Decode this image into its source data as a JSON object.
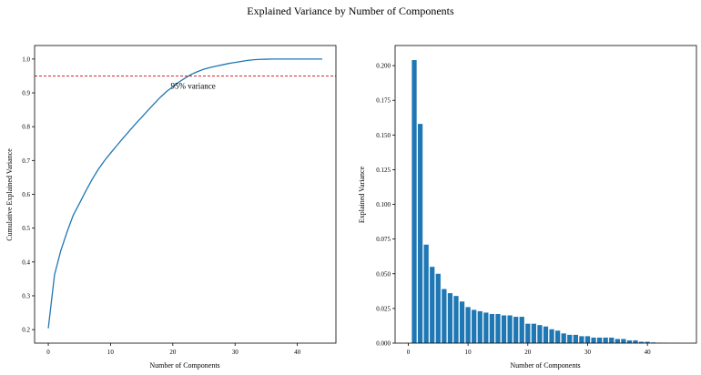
{
  "figure": {
    "title": "Explained Variance by Number of Components"
  },
  "chart_data": [
    {
      "type": "line",
      "xlabel": "Number of Components",
      "ylabel": "Cumulative Explained Variance",
      "xlim": [
        -2.2,
        46.2
      ],
      "ylim": [
        0.16,
        1.04
      ],
      "xticks": [
        0,
        10,
        20,
        30,
        40
      ],
      "yticks": [
        0.2,
        0.3,
        0.4,
        0.5,
        0.6,
        0.7,
        0.8,
        0.9,
        1.0
      ],
      "ytick_labels": [
        "0.2",
        "0.3",
        "0.4",
        "0.5",
        "0.6",
        "0.7",
        "0.8",
        "0.9",
        "1.0"
      ],
      "grid": false,
      "series": [
        {
          "color": "#1f77b4",
          "x": [
            0,
            1,
            2,
            3,
            4,
            5,
            6,
            7,
            8,
            9,
            10,
            11,
            12,
            13,
            14,
            15,
            16,
            17,
            18,
            19,
            20,
            21,
            22,
            23,
            24,
            25,
            26,
            27,
            28,
            29,
            30,
            31,
            32,
            33,
            34,
            35,
            36,
            37,
            38,
            39,
            40,
            41,
            42,
            43,
            44
          ],
          "y": [
            0.204,
            0.362,
            0.433,
            0.488,
            0.538,
            0.573,
            0.609,
            0.643,
            0.673,
            0.699,
            0.722,
            0.744,
            0.766,
            0.787,
            0.808,
            0.828,
            0.848,
            0.868,
            0.887,
            0.904,
            0.918,
            0.932,
            0.944,
            0.955,
            0.963,
            0.97,
            0.975,
            0.979,
            0.983,
            0.987,
            0.99,
            0.993,
            0.996,
            0.998,
            0.999,
            0.9995,
            1.0,
            1.0,
            1.0,
            1.0,
            1.0,
            1.0,
            1.0,
            1.0,
            1.0
          ]
        }
      ],
      "hline": {
        "y": 0.95,
        "color": "#d62728",
        "style": "dashed"
      },
      "annotation": {
        "text": "95% variance",
        "x": 22,
        "y": 0.92
      }
    },
    {
      "type": "bar",
      "xlabel": "Number of Components",
      "ylabel": "Explained Variance",
      "xlim": [
        -2.2,
        48.2
      ],
      "ylim": [
        0,
        0.2145
      ],
      "xticks": [
        0,
        10,
        20,
        30,
        40
      ],
      "yticks": [
        0,
        0.025,
        0.05,
        0.075,
        0.1,
        0.125,
        0.15,
        0.175,
        0.2
      ],
      "ytick_labels": [
        "0.000",
        "0.025",
        "0.050",
        "0.075",
        "0.100",
        "0.125",
        "0.150",
        "0.175",
        "0.200"
      ],
      "grid": false,
      "color": "#1f77b4",
      "x": [
        1,
        2,
        3,
        4,
        5,
        6,
        7,
        8,
        9,
        10,
        11,
        12,
        13,
        14,
        15,
        16,
        17,
        18,
        19,
        20,
        21,
        22,
        23,
        24,
        25,
        26,
        27,
        28,
        29,
        30,
        31,
        32,
        33,
        34,
        35,
        36,
        37,
        38,
        39,
        40,
        41,
        42,
        43,
        44,
        45
      ],
      "values": [
        0.204,
        0.158,
        0.071,
        0.055,
        0.05,
        0.039,
        0.036,
        0.034,
        0.03,
        0.026,
        0.024,
        0.023,
        0.022,
        0.021,
        0.021,
        0.02,
        0.02,
        0.019,
        0.019,
        0.014,
        0.014,
        0.013,
        0.012,
        0.01,
        0.009,
        0.007,
        0.006,
        0.006,
        0.005,
        0.005,
        0.004,
        0.004,
        0.004,
        0.004,
        0.003,
        0.003,
        0.002,
        0.002,
        0.001,
        0.001,
        0.0005,
        0.0003,
        0.0002,
        0.0001,
        0.0001
      ]
    }
  ]
}
